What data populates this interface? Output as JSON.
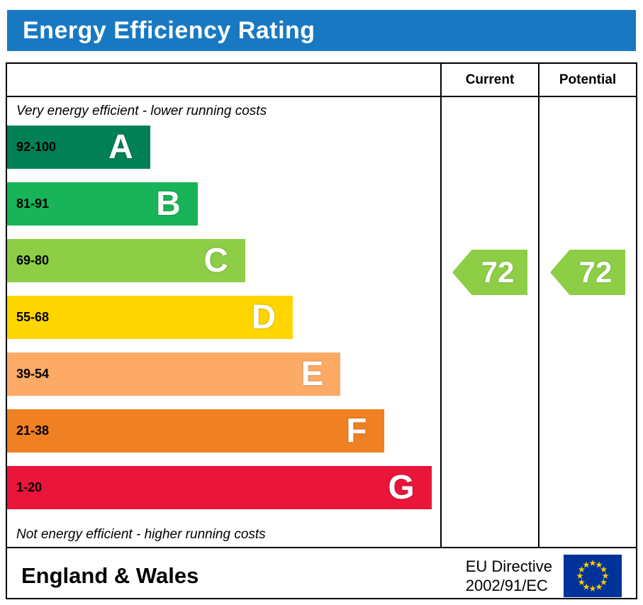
{
  "title": "Energy Efficiency Rating",
  "columns": {
    "current": "Current",
    "potential": "Potential"
  },
  "notes": {
    "top": "Very energy efficient - lower running costs",
    "bottom": "Not energy efficient - higher running costs"
  },
  "bands": [
    {
      "letter": "A",
      "range": "92-100",
      "color": "#008054",
      "width_pct": 33
    },
    {
      "letter": "B",
      "range": "81-91",
      "color": "#19b459",
      "width_pct": 44
    },
    {
      "letter": "C",
      "range": "69-80",
      "color": "#8dce46",
      "width_pct": 55
    },
    {
      "letter": "D",
      "range": "55-68",
      "color": "#ffd500",
      "width_pct": 66
    },
    {
      "letter": "E",
      "range": "39-54",
      "color": "#fcaa65",
      "width_pct": 77
    },
    {
      "letter": "F",
      "range": "21-38",
      "color": "#ef8023",
      "width_pct": 87
    },
    {
      "letter": "G",
      "range": "1-20",
      "color": "#e9153b",
      "width_pct": 98
    }
  ],
  "ratings": {
    "current": {
      "value": "72",
      "band": "C",
      "color": "#8dce46"
    },
    "potential": {
      "value": "72",
      "band": "C",
      "color": "#8dce46"
    }
  },
  "footer": {
    "region": "England & Wales",
    "directive": [
      "EU Directive",
      "2002/91/EC"
    ]
  },
  "flag_colors": {
    "field": "#003399",
    "stars": "#ffcc00"
  },
  "chart_data": {
    "type": "bar",
    "title": "Energy Efficiency Rating",
    "categories": [
      "A",
      "B",
      "C",
      "D",
      "E",
      "F",
      "G"
    ],
    "ranges": [
      "92-100",
      "81-91",
      "69-80",
      "55-68",
      "39-54",
      "21-38",
      "1-20"
    ],
    "values": [
      33,
      44,
      55,
      66,
      77,
      87,
      98
    ],
    "colors": [
      "#008054",
      "#19b459",
      "#8dce46",
      "#ffd500",
      "#fcaa65",
      "#ef8023",
      "#e9153b"
    ],
    "current": 72,
    "current_band": "C",
    "potential": 72,
    "potential_band": "C",
    "annotations": [
      "Very energy efficient - lower running costs",
      "Not energy efficient - higher running costs"
    ],
    "legend_position": "none",
    "grid": false
  }
}
